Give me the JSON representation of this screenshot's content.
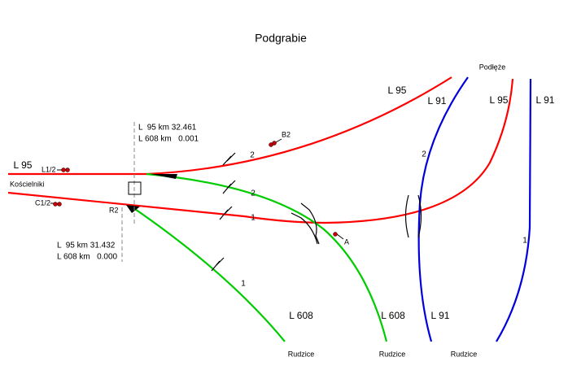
{
  "header": {
    "title": "Podgrabie"
  },
  "labels": {
    "podleze": "Podłęże",
    "l95_top": "L 95",
    "l91_top_a": "L 91",
    "l95_top_b": "L 95",
    "l91_top_b": "L 91",
    "l95_left": "L 95",
    "signal_l12": "L1/2",
    "koscielniki": "Kościelniki",
    "signal_c12": "C1/2",
    "r2": "R2",
    "signal_b2": "B2",
    "signal_a": "A",
    "km_top_1": "L  95 km 32.461",
    "km_top_2": "L 608 km   0.001",
    "km_bot_1": "L  95 km 31.432",
    "km_bot_2": "L 608 km   0.000",
    "l608_a": "L 608",
    "l608_b": "L 608",
    "l91_bottom": "L 91",
    "rudzice_a": "Rudzice",
    "rudzice_b": "Rudzice",
    "rudzice_c": "Rudzice"
  },
  "tracks": {
    "red_upper": "2",
    "green_upper": "2",
    "red_lower": "1",
    "blue_left": "2",
    "blue_right": "1",
    "green_lower": "1"
  }
}
